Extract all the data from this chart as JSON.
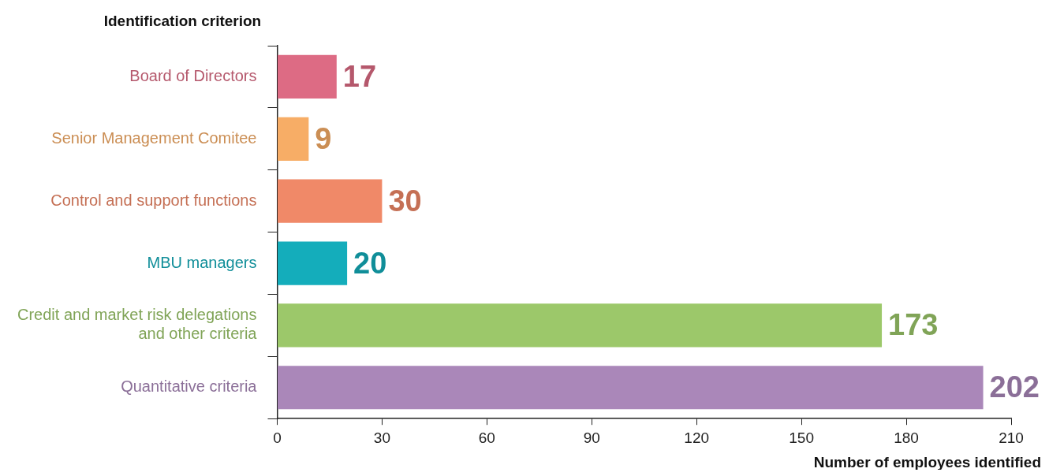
{
  "chart_data": {
    "type": "bar",
    "orientation": "horizontal",
    "title": "Identification criterion",
    "xlabel": "Number of employees identified",
    "categories": [
      "Board of Directors",
      "Senior Management Comitee",
      "Control and support functions",
      "MBU managers",
      "Credit and market risk delegations and other criteria",
      "Quantitative criteria"
    ],
    "values": [
      17,
      9,
      30,
      20,
      173,
      202
    ],
    "colors": [
      "#dd6b84",
      "#f7ad66",
      "#f08968",
      "#14adbb",
      "#9cc86a",
      "#aa87b9"
    ],
    "xlim": [
      0,
      210
    ],
    "xticks": [
      0,
      30,
      60,
      90,
      120,
      150,
      180,
      210
    ],
    "grid": false,
    "legend": false,
    "data_labels": true
  }
}
